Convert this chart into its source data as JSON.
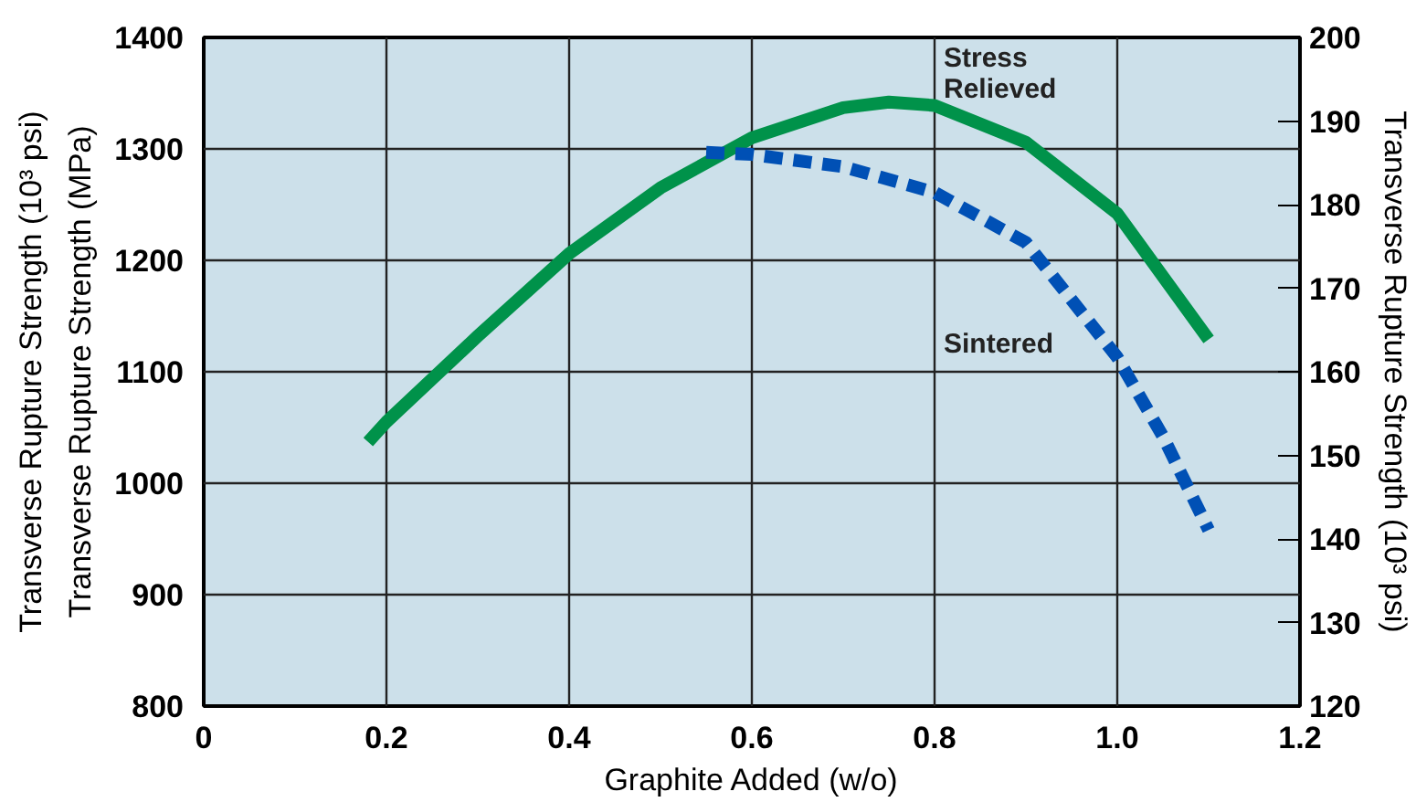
{
  "chart_data": {
    "type": "line",
    "xlabel": "Graphite Added (w/o)",
    "ylabel": "Transverse Rupture Strength (MPa)",
    "y2label": "Transverse Rupture Strength (10³ psi)",
    "annotations": [
      "Transverse Rupture Strength (10³ psi)"
    ],
    "xlim": [
      0,
      1.2
    ],
    "xticks": [
      0,
      0.2,
      0.4,
      0.6,
      0.8,
      {
        "value": 1,
        "label": "1.0"
      },
      1.2
    ],
    "ylim": [
      800,
      1400
    ],
    "yticks": [
      800,
      900,
      1000,
      1100,
      1200,
      1300,
      1400
    ],
    "y2lim": [
      120,
      200
    ],
    "y2ticks": [
      120,
      130,
      140,
      150,
      160,
      170,
      180,
      190,
      200
    ],
    "grid": true,
    "marker": "none",
    "series": [
      {
        "name": "Stress Relieved",
        "color": "#00924a",
        "line_style": "solid",
        "x": [
          0.18,
          0.2,
          0.3,
          0.4,
          0.5,
          0.6,
          0.7,
          0.75,
          0.8,
          0.9,
          1.0,
          1.1
        ],
        "values": [
          1037,
          1055,
          1132,
          1206,
          1265,
          1310,
          1337,
          1342,
          1339,
          1306,
          1242,
          1129
        ]
      },
      {
        "name": "Sintered",
        "color": "#0050b5",
        "line_style": "dashed",
        "x": [
          0.55,
          0.6,
          0.7,
          0.8,
          0.9,
          1.0,
          1.05,
          1.1
        ],
        "values": [
          1297,
          1295,
          1284,
          1261,
          1216,
          1113,
          1042,
          958
        ]
      }
    ]
  }
}
